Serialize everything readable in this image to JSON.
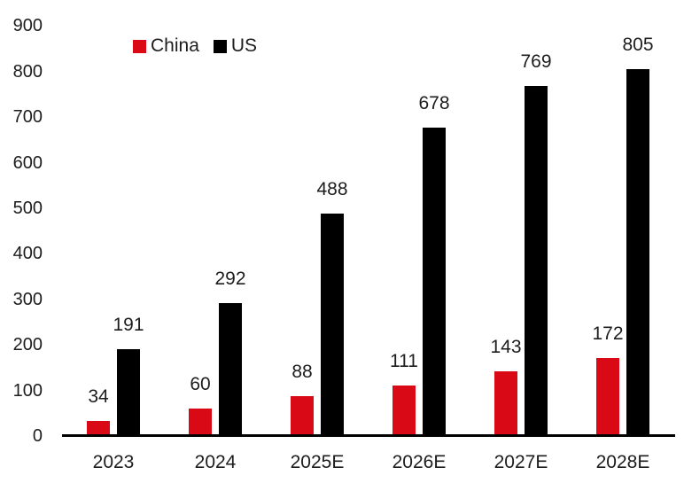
{
  "chart_data": {
    "type": "bar",
    "title": "",
    "xlabel": "",
    "ylabel": "",
    "categories": [
      "2023",
      "2024",
      "2025E",
      "2026E",
      "2027E",
      "2028E"
    ],
    "series": [
      {
        "name": "China",
        "color": "#d90916",
        "values": [
          34,
          60,
          88,
          111,
          143,
          172
        ]
      },
      {
        "name": "US",
        "color": "#000000",
        "values": [
          191,
          292,
          488,
          678,
          769,
          805
        ]
      }
    ],
    "ylim": [
      0,
      900
    ],
    "y_ticks": [
      0,
      100,
      200,
      300,
      400,
      500,
      600,
      700,
      800,
      900
    ],
    "grid": false,
    "legend_position": "top-left",
    "value_labels": true,
    "axis_color": "#000000",
    "text_color": "#1d1d1d",
    "background_color": "#ffffff"
  }
}
